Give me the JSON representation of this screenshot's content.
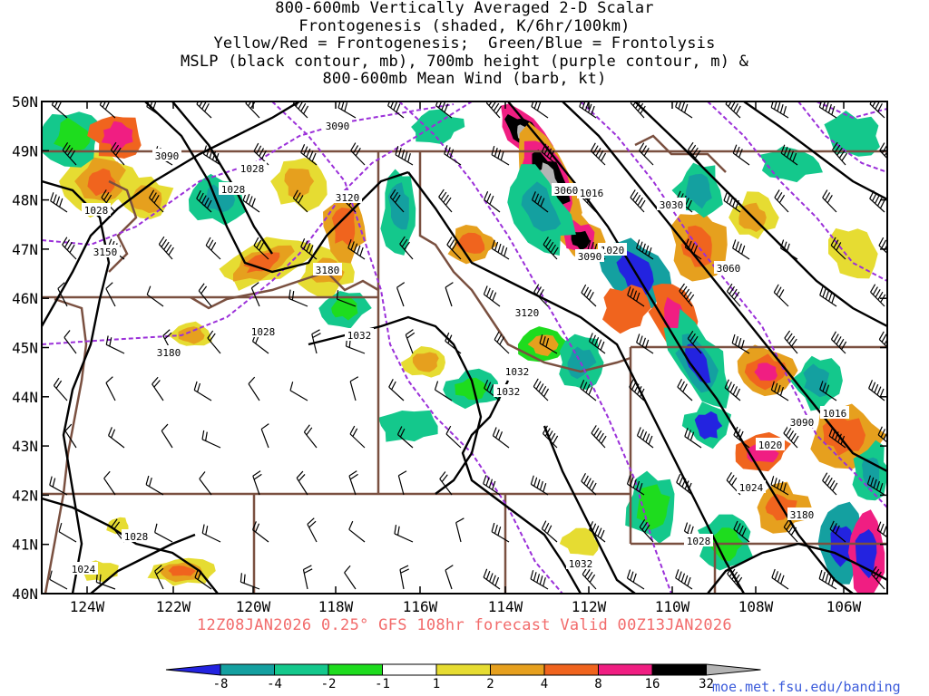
{
  "title": {
    "lines": [
      "800-600mb Vertically Averaged 2-D Scalar",
      "Frontogenesis (shaded, K/6hr/100km)",
      "Yellow/Red = Frontogenesis;  Green/Blue = Frontolysis",
      "MSLP (black contour, mb), 700mb height (purple contour, m) &",
      "800-600mb Mean Wind (barb, kt)"
    ]
  },
  "map": {
    "lat_labels": [
      "50N",
      "49N",
      "48N",
      "47N",
      "46N",
      "45N",
      "44N",
      "43N",
      "42N",
      "41N",
      "40N"
    ],
    "lon_labels": [
      "124W",
      "122W",
      "120W",
      "118W",
      "116W",
      "114W",
      "112W",
      "110W",
      "108W",
      "106W"
    ],
    "mslp_labels": [
      "1028",
      "1028",
      "1028",
      "1028",
      "1032",
      "1032",
      "1032",
      "1032",
      "1028",
      "1024",
      "1028",
      "1016",
      "1020",
      "1016",
      "1020",
      "1024"
    ],
    "height_labels": [
      "3090",
      "3090",
      "3120",
      "3150",
      "3180",
      "3180",
      "3120",
      "3060",
      "3090",
      "3030",
      "3060",
      "3090",
      "3180"
    ],
    "colors": {
      "mslp_contour": "#000000",
      "height_contour": "#9b30d9",
      "state_border": "#7a5040",
      "frame": "#000000"
    }
  },
  "footer": "12Z08JAN2026 0.25° GFS 108hr forecast Valid 00Z13JAN2026",
  "colorbar": {
    "labels": [
      "-8",
      "-4",
      "-2",
      "-1",
      "1",
      "2",
      "4",
      "8",
      "16",
      "32"
    ],
    "colors": [
      "#2323e0",
      "#14a0a0",
      "#14c88c",
      "#1edc1e",
      "#ffffff",
      "#e6dc32",
      "#e6a01e",
      "#f0641e",
      "#f01e82",
      "#000000",
      "#b4b4b4"
    ]
  },
  "credit": "moe.met.fsu.edu/banding"
}
